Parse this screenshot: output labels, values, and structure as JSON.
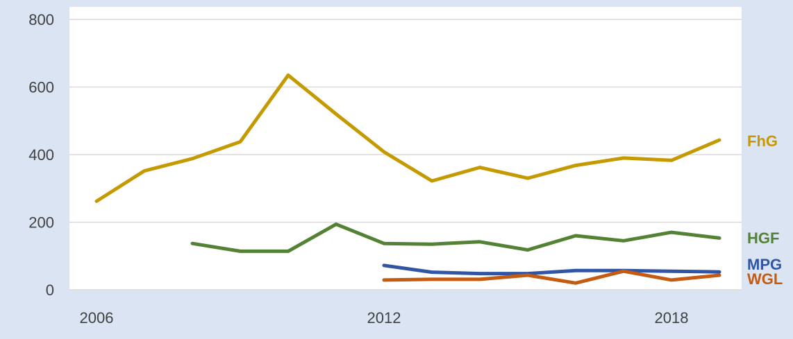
{
  "chart_data": {
    "type": "line",
    "title": "",
    "xlabel": "",
    "ylabel": "",
    "xlim": [
      2006,
      2019
    ],
    "ylim": [
      0,
      800
    ],
    "y_ticks": [
      0,
      200,
      400,
      600,
      800
    ],
    "x_ticks": [
      2006,
      2012,
      2018
    ],
    "grid": "horizontal",
    "legend": "direct labels at right end of lines",
    "series": [
      {
        "name": "FhG",
        "color": "#c49a00",
        "x": [
          2006,
          2007,
          2008,
          2009,
          2010,
          2011,
          2012,
          2013,
          2014,
          2015,
          2016,
          2017,
          2018,
          2019
        ],
        "values": [
          262,
          352,
          388,
          438,
          635,
          520,
          408,
          322,
          362,
          330,
          368,
          390,
          383,
          443
        ]
      },
      {
        "name": "HGF",
        "color": "#548235",
        "x": [
          2008,
          2009,
          2010,
          2011,
          2012,
          2013,
          2014,
          2015,
          2016,
          2017,
          2018,
          2019
        ],
        "values": [
          137,
          114,
          114,
          194,
          137,
          135,
          142,
          118,
          160,
          145,
          170,
          153
        ]
      },
      {
        "name": "MPG",
        "color": "#2f55a4",
        "x": [
          2012,
          2013,
          2014,
          2015,
          2016,
          2017,
          2018,
          2019
        ],
        "values": [
          72,
          52,
          48,
          48,
          57,
          57,
          55,
          53
        ]
      },
      {
        "name": "WGL",
        "color": "#c55a11",
        "x": [
          2012,
          2013,
          2014,
          2015,
          2016,
          2017,
          2018,
          2019
        ],
        "values": [
          29,
          31,
          31,
          43,
          20,
          55,
          29,
          43
        ]
      }
    ]
  }
}
